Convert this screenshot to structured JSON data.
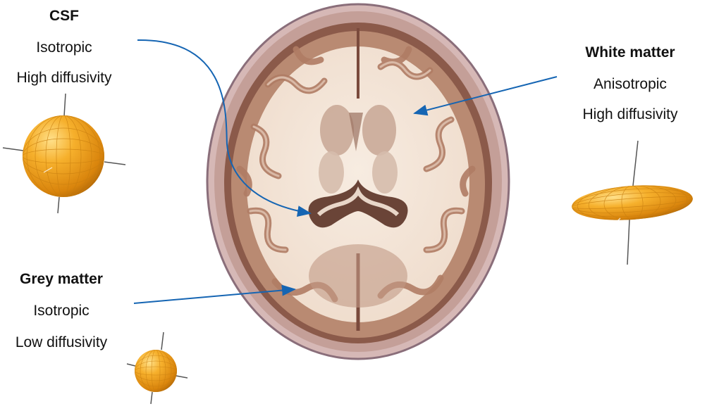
{
  "labels": {
    "csf": {
      "title": "CSF",
      "line1": "Isotropic",
      "line2": "High diffusivity"
    },
    "white_matter": {
      "title": "White matter",
      "line1": "Anisotropic",
      "line2": "High diffusivity"
    },
    "grey_matter": {
      "title": "Grey matter",
      "line1": "Isotropic",
      "line2": "Low diffusivity"
    }
  },
  "colors": {
    "arrow": "#1565b3",
    "ellipsoid": "#f0a21e",
    "brain_tissue": "#f4e7da",
    "grey_matter": "#b58770",
    "skull": "#c9a7a6"
  },
  "icons": {
    "csf_shape": "sphere-tensor-icon",
    "white_matter_shape": "prolate-ellipsoid-tensor-icon",
    "grey_matter_shape": "small-sphere-tensor-icon",
    "brain": "brain-axial-slice-icon"
  }
}
